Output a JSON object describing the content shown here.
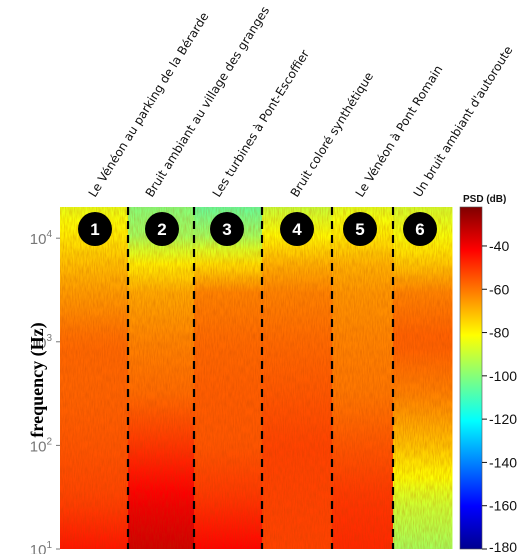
{
  "chart_data": {
    "type": "heatmap",
    "title": "",
    "ylabel": "frequency (Hz)",
    "yscale": "log",
    "ylim": [
      10,
      20000
    ],
    "yticks": [
      {
        "value": 10000,
        "base": "10",
        "exp": "4"
      },
      {
        "value": 1000,
        "base": "10",
        "exp": "3"
      },
      {
        "value": 100,
        "base": "10",
        "exp": "2"
      },
      {
        "value": 10,
        "base": "10",
        "exp": "1"
      }
    ],
    "colorbar": {
      "title": "PSD (dB)",
      "range": [
        -180,
        -22
      ],
      "ticks": [
        "-40",
        "-60",
        "-80",
        "-100",
        "-120",
        "-140",
        "-160",
        "-180"
      ],
      "colormap": "jet"
    },
    "segments": [
      {
        "number": "1",
        "label": "Le Vénéon au parking de la Bérarde"
      },
      {
        "number": "2",
        "label": "Bruit ambiant au village des granges"
      },
      {
        "number": "3",
        "label": "Les turbines à Pont-Escoffier"
      },
      {
        "number": "4",
        "label": "Bruit coloré synthétique"
      },
      {
        "number": "5",
        "label": "Le Vénéon à Pont Romain"
      },
      {
        "number": "6",
        "label": "Un bruit ambiant d'autoroute"
      }
    ],
    "segment_boundaries": [
      1,
      2,
      3,
      4,
      5
    ],
    "spectrum_profiles_db": [
      {
        "segment": "1",
        "freq_hz": [
          10,
          30,
          100,
          300,
          1000,
          3000,
          6000,
          10000,
          20000
        ],
        "psd_db": [
          -45,
          -52,
          -55,
          -57,
          -58,
          -66,
          -72,
          -78,
          -85
        ]
      },
      {
        "segment": "2",
        "freq_hz": [
          10,
          30,
          100,
          300,
          1000,
          3000,
          6000,
          10000,
          20000
        ],
        "psd_db": [
          -34,
          -40,
          -50,
          -58,
          -62,
          -68,
          -80,
          -95,
          -100
        ]
      },
      {
        "segment": "3",
        "freq_hz": [
          10,
          30,
          100,
          300,
          1000,
          3000,
          6000,
          10000,
          20000
        ],
        "psd_db": [
          -42,
          -50,
          -55,
          -56,
          -58,
          -62,
          -78,
          -95,
          -105
        ]
      },
      {
        "segment": "4",
        "freq_hz": [
          10,
          30,
          100,
          300,
          1000,
          3000,
          6000,
          10000,
          20000
        ],
        "psd_db": [
          -52,
          -52,
          -52,
          -55,
          -58,
          -62,
          -70,
          -80,
          -90
        ]
      },
      {
        "segment": "5",
        "freq_hz": [
          10,
          30,
          100,
          300,
          1000,
          3000,
          6000,
          10000,
          20000
        ],
        "psd_db": [
          -48,
          -50,
          -55,
          -60,
          -62,
          -65,
          -70,
          -78,
          -86
        ]
      },
      {
        "segment": "6",
        "freq_hz": [
          10,
          30,
          100,
          300,
          1000,
          3000,
          6000,
          10000,
          20000
        ],
        "psd_db": [
          -95,
          -88,
          -72,
          -62,
          -56,
          -62,
          -74,
          -82,
          -88
        ]
      }
    ]
  }
}
